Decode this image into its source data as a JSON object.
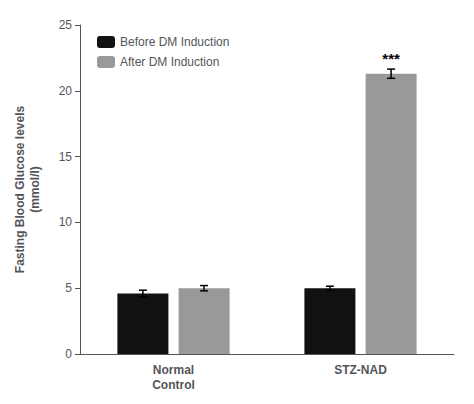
{
  "chart_data": {
    "type": "bar",
    "categories": [
      "Normal\nControl",
      "STZ-NAD"
    ],
    "series": [
      {
        "name": "Before DM Induction",
        "color": "#111111",
        "values": [
          4.6,
          5.0
        ],
        "errors": [
          0.25,
          0.15
        ]
      },
      {
        "name": "After DM Induction",
        "color": "#999999",
        "values": [
          5.0,
          21.3
        ],
        "errors": [
          0.2,
          0.35
        ]
      }
    ],
    "ylabel": "Fasting Blood Glucose levels\n(mmol/l)",
    "ylim": [
      0,
      25
    ],
    "yticks": [
      0,
      5,
      10,
      15,
      20,
      25
    ],
    "legend": "upper left",
    "grid": false,
    "annotations": [
      {
        "text": "***",
        "series": "After DM Induction",
        "category": "STZ-NAD"
      }
    ]
  }
}
